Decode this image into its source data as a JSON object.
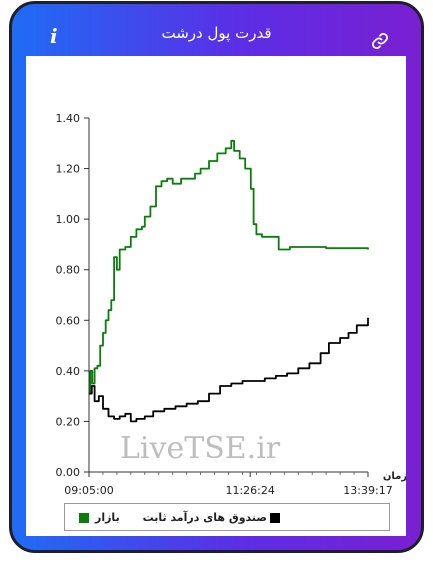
{
  "header": {
    "title": "قدرت پول درشت",
    "info_icon": "info-icon",
    "link_icon": "link-icon"
  },
  "watermark": "LiveTSE.ir",
  "chart_data": {
    "type": "line",
    "title": "قدرت پول درشت",
    "xlabel": "زمان",
    "ylabel": "",
    "ylim": [
      0,
      1.4
    ],
    "yticks": [
      "0.00",
      "0.20",
      "0.40",
      "0.60",
      "0.80",
      "1.00",
      "1.20",
      "1.40"
    ],
    "xticks": [
      "09:05:00",
      "11:26:24",
      "13:39:17"
    ],
    "legend_position": "bottom",
    "series": [
      {
        "name": "بازار",
        "color": "#0a7d0a",
        "points": [
          [
            0,
            0.31
          ],
          [
            0.005,
            0.4
          ],
          [
            0.012,
            0.35
          ],
          [
            0.02,
            0.41
          ],
          [
            0.03,
            0.42
          ],
          [
            0.04,
            0.5
          ],
          [
            0.05,
            0.55
          ],
          [
            0.06,
            0.6
          ],
          [
            0.07,
            0.64
          ],
          [
            0.08,
            0.68
          ],
          [
            0.09,
            0.85
          ],
          [
            0.1,
            0.8
          ],
          [
            0.11,
            0.88
          ],
          [
            0.13,
            0.89
          ],
          [
            0.15,
            0.93
          ],
          [
            0.17,
            0.96
          ],
          [
            0.19,
            0.97
          ],
          [
            0.2,
            1.01
          ],
          [
            0.22,
            1.05
          ],
          [
            0.24,
            1.13
          ],
          [
            0.26,
            1.15
          ],
          [
            0.28,
            1.16
          ],
          [
            0.3,
            1.14
          ],
          [
            0.33,
            1.16
          ],
          [
            0.36,
            1.16
          ],
          [
            0.38,
            1.18
          ],
          [
            0.4,
            1.2
          ],
          [
            0.43,
            1.23
          ],
          [
            0.46,
            1.26
          ],
          [
            0.49,
            1.28
          ],
          [
            0.51,
            1.31
          ],
          [
            0.52,
            1.27
          ],
          [
            0.54,
            1.24
          ],
          [
            0.56,
            1.2
          ],
          [
            0.58,
            1.12
          ],
          [
            0.59,
            0.98
          ],
          [
            0.6,
            0.94
          ],
          [
            0.62,
            0.93
          ],
          [
            0.66,
            0.93
          ],
          [
            0.68,
            0.88
          ],
          [
            0.72,
            0.89
          ],
          [
            0.78,
            0.89
          ],
          [
            0.85,
            0.885
          ],
          [
            0.92,
            0.885
          ],
          [
            1.0,
            0.88
          ]
        ]
      },
      {
        "name": "صندوق های درآمد ثابت",
        "color": "#000000",
        "points": [
          [
            0,
            0.31
          ],
          [
            0.01,
            0.34
          ],
          [
            0.02,
            0.28
          ],
          [
            0.035,
            0.3
          ],
          [
            0.05,
            0.25
          ],
          [
            0.07,
            0.22
          ],
          [
            0.09,
            0.21
          ],
          [
            0.11,
            0.22
          ],
          [
            0.13,
            0.23
          ],
          [
            0.15,
            0.2
          ],
          [
            0.17,
            0.21
          ],
          [
            0.2,
            0.22
          ],
          [
            0.23,
            0.24
          ],
          [
            0.27,
            0.25
          ],
          [
            0.31,
            0.26
          ],
          [
            0.35,
            0.27
          ],
          [
            0.39,
            0.28
          ],
          [
            0.43,
            0.31
          ],
          [
            0.47,
            0.34
          ],
          [
            0.51,
            0.35
          ],
          [
            0.55,
            0.36
          ],
          [
            0.59,
            0.36
          ],
          [
            0.63,
            0.37
          ],
          [
            0.67,
            0.38
          ],
          [
            0.71,
            0.39
          ],
          [
            0.75,
            0.41
          ],
          [
            0.79,
            0.43
          ],
          [
            0.83,
            0.47
          ],
          [
            0.86,
            0.51
          ],
          [
            0.9,
            0.53
          ],
          [
            0.93,
            0.55
          ],
          [
            0.96,
            0.58
          ],
          [
            1.0,
            0.61
          ]
        ]
      }
    ]
  }
}
